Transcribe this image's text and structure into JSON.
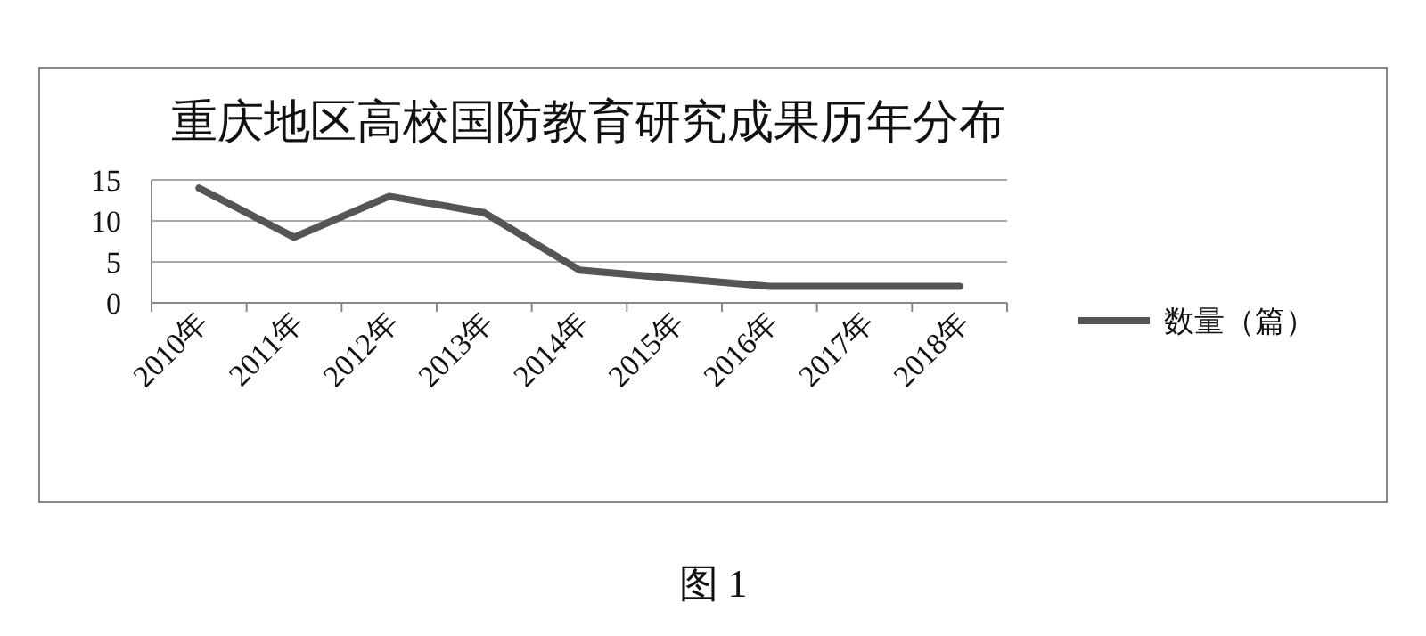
{
  "chart_data": {
    "type": "line",
    "title": "重庆地区高校国防教育研究成果历年分布",
    "categories": [
      "2010年",
      "2011年",
      "2012年",
      "2013年",
      "2014年",
      "2015年",
      "2016年",
      "2017年",
      "2018年"
    ],
    "series": [
      {
        "name": "数量（篇）",
        "color": "#555555",
        "values": [
          14,
          8,
          13,
          11,
          4,
          3,
          2,
          2,
          2
        ]
      }
    ],
    "ylim": [
      0,
      15
    ],
    "yticks": [
      0,
      5,
      10,
      15
    ],
    "grid": "y",
    "legend": "right",
    "annotations": [
      "图 1"
    ]
  }
}
